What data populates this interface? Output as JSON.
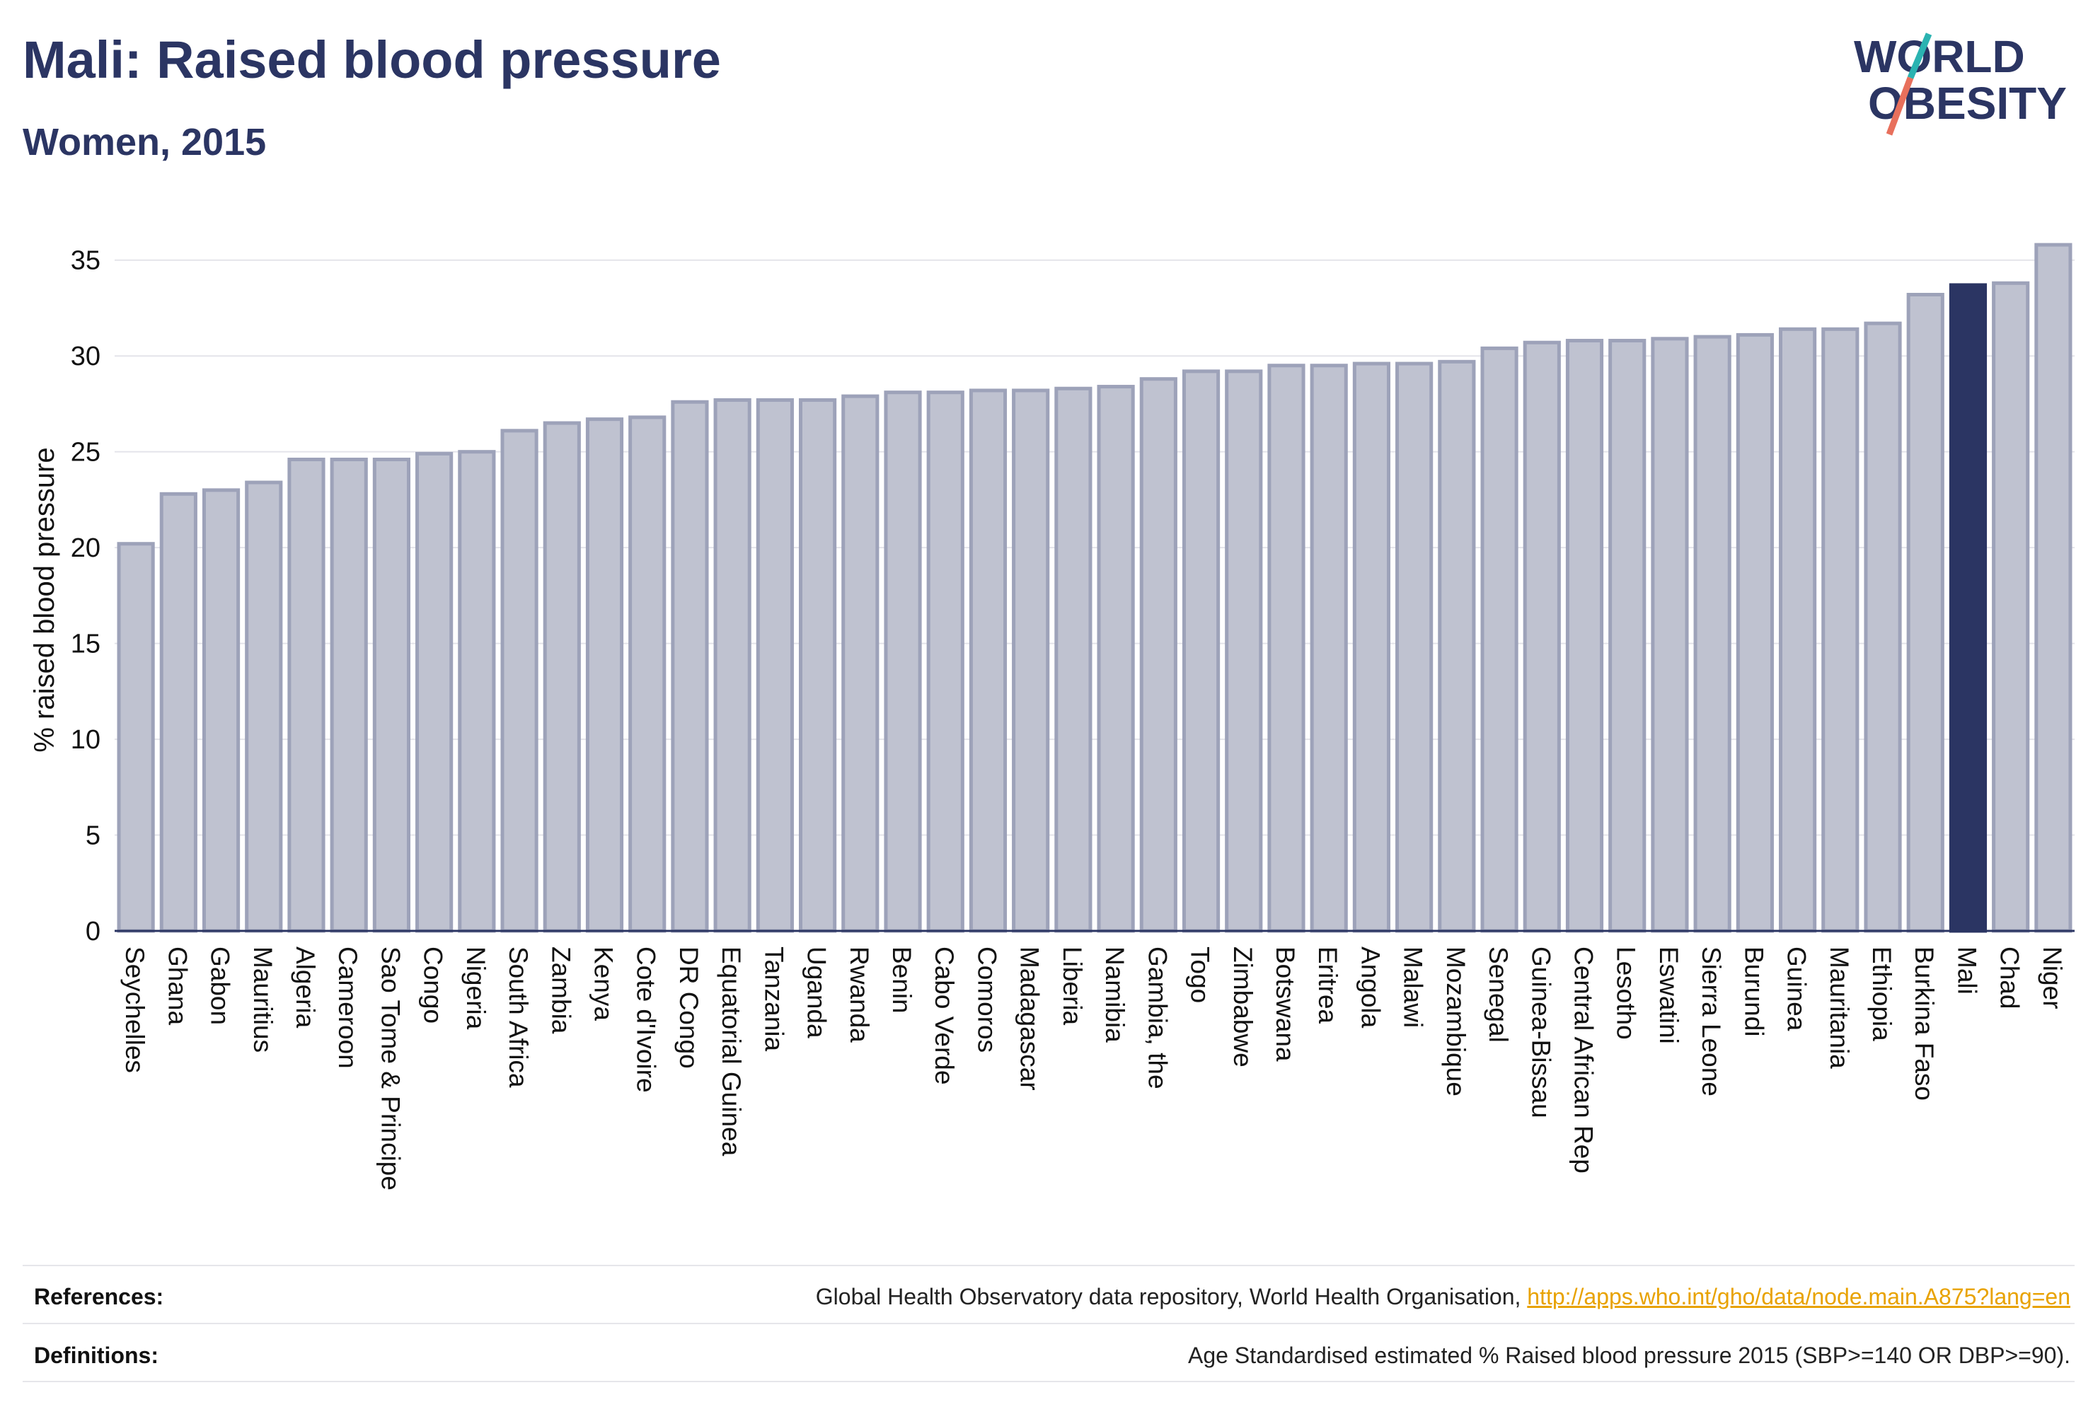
{
  "header": {
    "title": "Mali: Raised blood pressure",
    "subtitle": "Women, 2015",
    "logo_line1": "WORLD",
    "logo_line2": "OBESITY"
  },
  "chart_data": {
    "type": "bar",
    "ylabel": "% raised blood pressure",
    "ylim": [
      0,
      37.5
    ],
    "yticks": [
      0,
      5,
      10,
      15,
      20,
      25,
      30,
      35
    ],
    "grid": true,
    "highlight": "Mali",
    "colors": {
      "bar": "#bfc2d0",
      "bar_edge": "#9da2b9",
      "highlight": "#2b3563",
      "axis": "#2b3563",
      "grid": "#e4e4ea"
    },
    "categories": [
      "Seychelles",
      "Ghana",
      "Gabon",
      "Mauritius",
      "Algeria",
      "Cameroon",
      "Sao Tome & Principe",
      "Congo",
      "Nigeria",
      "South Africa",
      "Zambia",
      "Kenya",
      "Cote d'Ivoire",
      "DR Congo",
      "Equatorial Guinea",
      "Tanzania",
      "Uganda",
      "Rwanda",
      "Benin",
      "Cabo Verde",
      "Comoros",
      "Madagascar",
      "Liberia",
      "Namibia",
      "Gambia, the",
      "Togo",
      "Zimbabwe",
      "Botswana",
      "Eritrea",
      "Angola",
      "Malawi",
      "Mozambique",
      "Senegal",
      "Guinea-Bissau",
      "Central African Rep",
      "Lesotho",
      "Eswatini",
      "Sierra Leone",
      "Burundi",
      "Guinea",
      "Mauritania",
      "Ethiopia",
      "Burkina Faso",
      "Mali",
      "Chad",
      "Niger"
    ],
    "values": [
      20.2,
      22.8,
      23.0,
      23.4,
      24.6,
      24.6,
      24.6,
      24.9,
      25.0,
      26.1,
      26.5,
      26.7,
      26.8,
      27.6,
      27.7,
      27.7,
      27.7,
      27.9,
      28.1,
      28.1,
      28.2,
      28.2,
      28.3,
      28.4,
      28.8,
      29.2,
      29.2,
      29.5,
      29.5,
      29.6,
      29.6,
      29.7,
      30.4,
      30.7,
      30.8,
      30.8,
      30.9,
      31.0,
      31.1,
      31.4,
      31.4,
      31.7,
      33.2,
      33.7,
      33.8,
      35.8
    ]
  },
  "footer": {
    "references_label": "References:",
    "references_text": "Global Health Observatory data repository, World Health Organisation, ",
    "references_link": "http://apps.who.int/gho/data/node.main.A875?lang=en",
    "definitions_label": "Definitions:",
    "definitions_text": "Age Standardised estimated % Raised blood pressure 2015 (SBP>=140 OR DBP>=90)."
  }
}
